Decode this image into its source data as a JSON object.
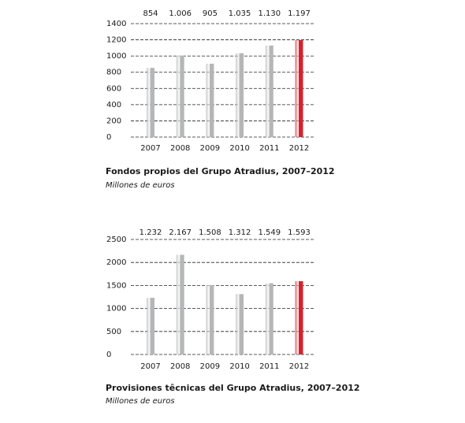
{
  "chart_data": [
    {
      "type": "bar",
      "title": "Fondos propios del Grupo Atradius, 2007–2012",
      "subtitle": "Millones de euros",
      "categories": [
        "2007",
        "2008",
        "2009",
        "2010",
        "2011",
        "2012"
      ],
      "values": [
        854,
        1006,
        905,
        1035,
        1130,
        1197
      ],
      "value_labels": [
        "854",
        "1.006",
        "905",
        "1.035",
        "1.130",
        "1.197"
      ],
      "colors": [
        "#b5b6b8",
        "#b5b6b8",
        "#b5b6b8",
        "#b5b6b8",
        "#b5b6b8",
        "#d4232d"
      ],
      "ylim": [
        0,
        1400
      ],
      "yticks": [
        0,
        200,
        400,
        600,
        800,
        1000,
        1200,
        1400
      ],
      "grid": true
    },
    {
      "type": "bar",
      "title": "Provisiones têcnicas del Grupo Atradius, 2007–2012",
      "subtitle": "Millones de euros",
      "categories": [
        "2007",
        "2008",
        "2009",
        "2010",
        "2011",
        "2012"
      ],
      "values": [
        1232,
        2167,
        1508,
        1312,
        1549,
        1593
      ],
      "value_labels": [
        "1.232",
        "2.167",
        "1.508",
        "1.312",
        "1.549",
        "1.593"
      ],
      "colors": [
        "#b5b6b8",
        "#b5b6b8",
        "#b5b6b8",
        "#b5b6b8",
        "#b5b6b8",
        "#d4232d"
      ],
      "ylim": [
        0,
        2500
      ],
      "yticks": [
        0,
        500,
        1000,
        1500,
        2000,
        2500
      ],
      "grid": true
    }
  ]
}
